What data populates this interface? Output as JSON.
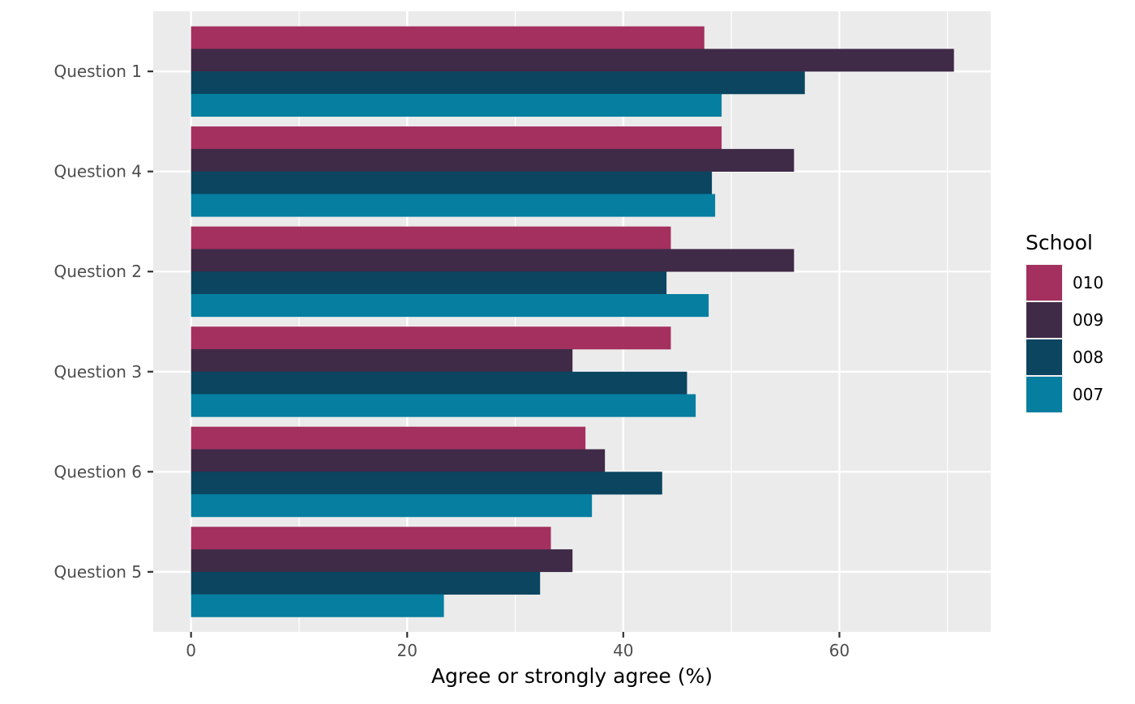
{
  "chart_data": {
    "type": "bar",
    "orientation": "horizontal",
    "categories": [
      "Question 1",
      "Question 4",
      "Question 2",
      "Question 3",
      "Question 6",
      "Question 5"
    ],
    "xlabel": "Agree or strongly agree (%)",
    "ylabel": "",
    "xlim": [
      -3.5,
      74
    ],
    "xticks": [
      0,
      20,
      40,
      60
    ],
    "grid": true,
    "legend": {
      "title": "School",
      "placement": "right"
    },
    "series": [
      {
        "name": "010",
        "color": "#A3305E",
        "values": [
          47.5,
          49.1,
          44.4,
          44.4,
          36.5,
          33.3
        ]
      },
      {
        "name": "009",
        "color": "#3F2A47",
        "values": [
          70.6,
          55.8,
          55.8,
          35.3,
          38.3,
          35.3
        ]
      },
      {
        "name": "008",
        "color": "#0B4560",
        "values": [
          56.8,
          48.2,
          44.0,
          45.9,
          43.6,
          32.3
        ]
      },
      {
        "name": "007",
        "color": "#057EA0",
        "values": [
          49.1,
          48.5,
          47.9,
          46.7,
          37.1,
          23.4
        ]
      }
    ]
  }
}
